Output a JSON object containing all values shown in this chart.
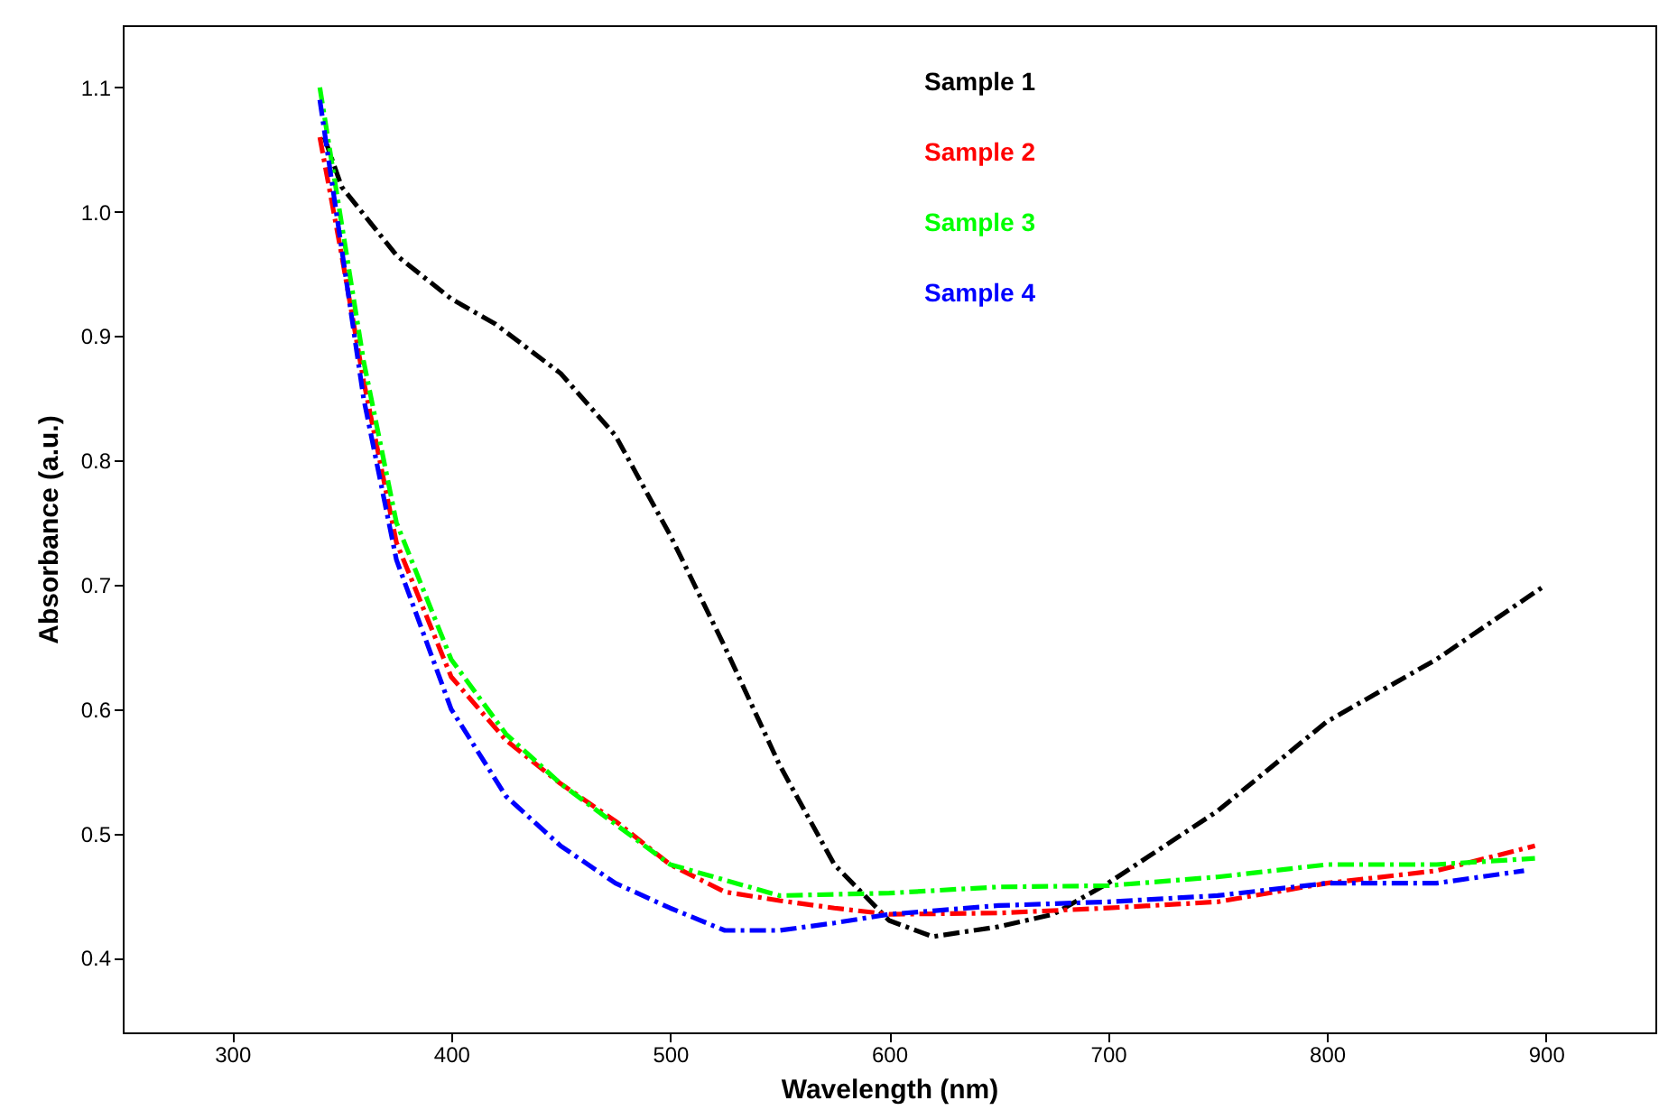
{
  "chart_data": {
    "type": "line",
    "xlabel": "Wavelength (nm)",
    "ylabel": "Absorbance (a.u.)",
    "xlim": [
      250,
      950
    ],
    "xticks": [
      300,
      400,
      500,
      600,
      700,
      800,
      900
    ],
    "ylim": [
      0.34,
      1.15
    ],
    "yticks": [
      0.4,
      0.5,
      0.6,
      0.7,
      0.8,
      0.9,
      {
        "value": 1,
        "label": "1.0"
      },
      1.1
    ],
    "grid": false,
    "legend": "top",
    "line_style": "dashed",
    "marker": "none",
    "series": [
      {
        "name": "Sample 1",
        "color": "#000000",
        "x": [
          342,
          350,
          375,
          400,
          420,
          450,
          475,
          500,
          525,
          550,
          575,
          600,
          620,
          650,
          675,
          700,
          750,
          800,
          850,
          900
        ],
        "values": [
          1.06,
          1.02,
          0.965,
          0.93,
          0.91,
          0.87,
          0.82,
          0.74,
          0.65,
          0.555,
          0.475,
          0.43,
          0.417,
          0.425,
          0.435,
          0.46,
          0.518,
          0.59,
          0.64,
          0.7
        ]
      },
      {
        "name": "Sample 2",
        "color": "#ff0000",
        "x": [
          340,
          350,
          360,
          375,
          400,
          425,
          450,
          475,
          500,
          525,
          550,
          575,
          600,
          650,
          700,
          750,
          800,
          850,
          895
        ],
        "values": [
          1.06,
          0.965,
          0.864,
          0.734,
          0.626,
          0.575,
          0.54,
          0.51,
          0.475,
          0.453,
          0.446,
          0.44,
          0.435,
          0.436,
          0.44,
          0.445,
          0.46,
          0.47,
          0.49
        ]
      },
      {
        "name": "Sample 3",
        "color": "#00ff00",
        "x": [
          340,
          350,
          360,
          375,
          400,
          425,
          450,
          500,
          550,
          600,
          650,
          700,
          750,
          800,
          850,
          895
        ],
        "values": [
          1.1,
          0.99,
          0.88,
          0.75,
          0.64,
          0.58,
          0.54,
          0.475,
          0.45,
          0.452,
          0.457,
          0.458,
          0.465,
          0.475,
          0.475,
          0.48
        ]
      },
      {
        "name": "Sample 4",
        "color": "#0000ff",
        "x": [
          340,
          350,
          360,
          375,
          400,
          425,
          450,
          475,
          500,
          525,
          550,
          575,
          600,
          650,
          700,
          750,
          800,
          850,
          890
        ],
        "values": [
          1.09,
          0.97,
          0.85,
          0.72,
          0.6,
          0.53,
          0.49,
          0.46,
          0.44,
          0.422,
          0.422,
          0.428,
          0.435,
          0.442,
          0.445,
          0.45,
          0.46,
          0.46,
          0.47
        ]
      }
    ]
  }
}
